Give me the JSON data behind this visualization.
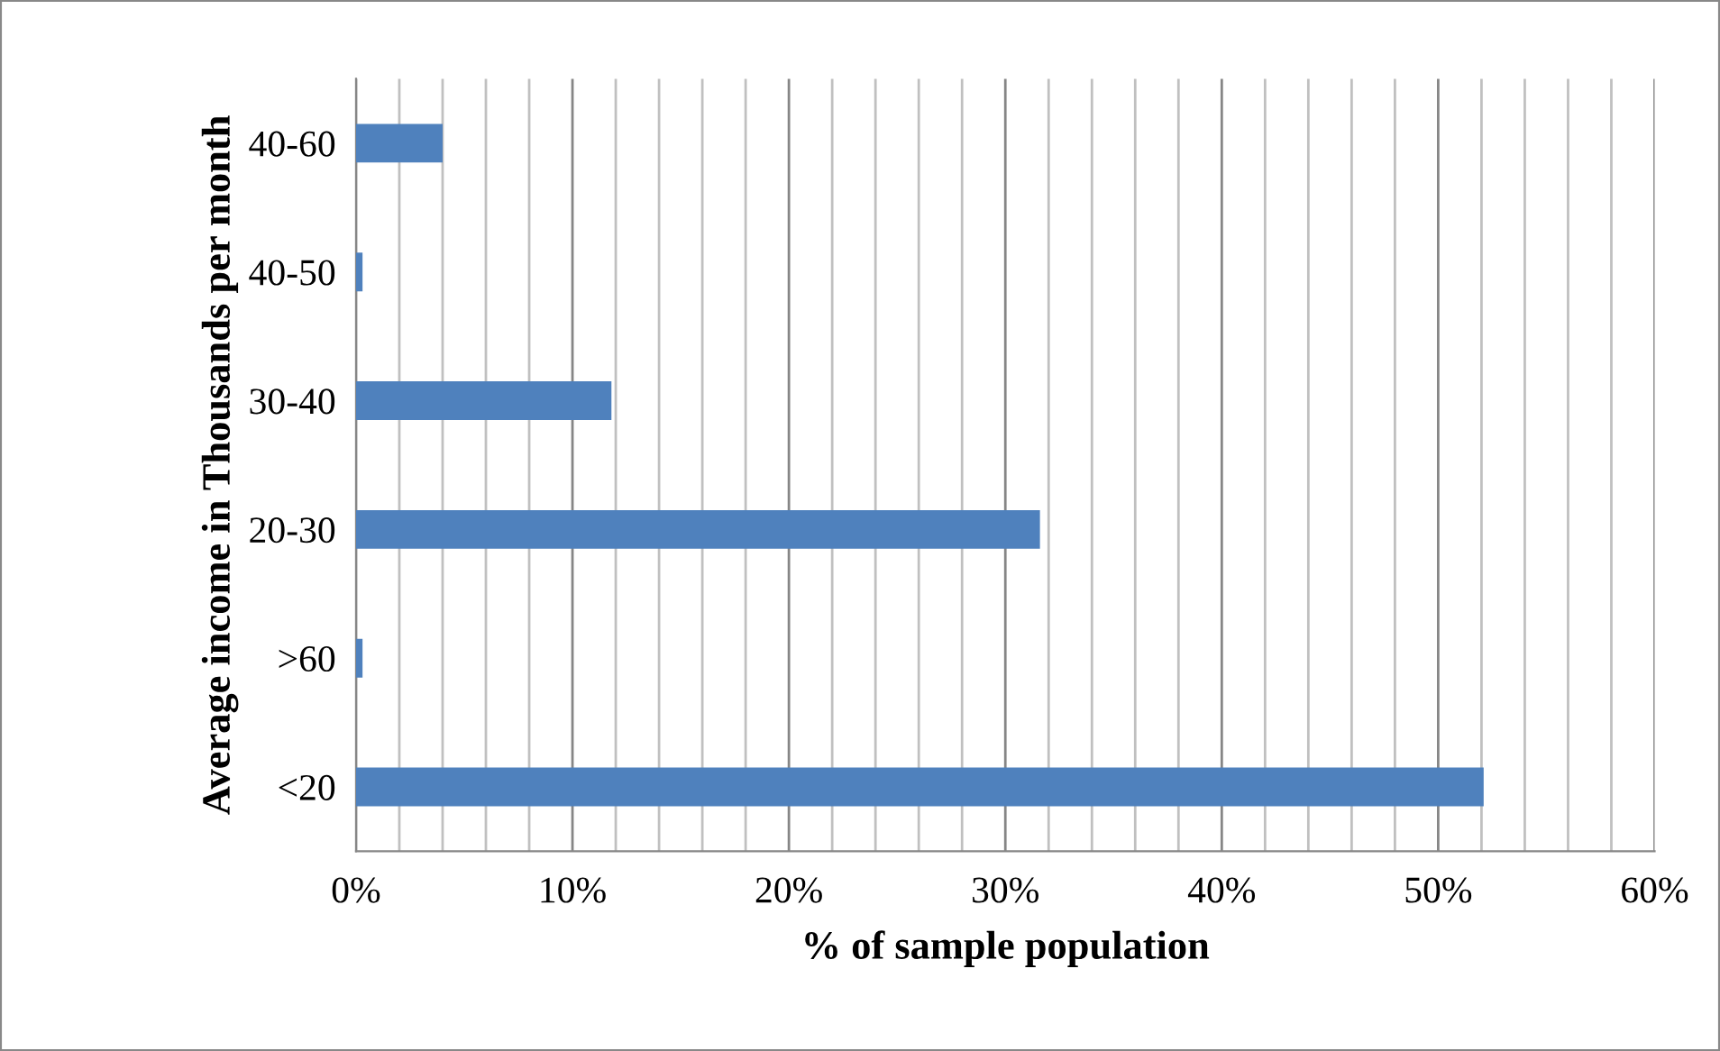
{
  "chart_data": {
    "type": "bar",
    "orientation": "horizontal",
    "categories": [
      "40-60",
      "40-50",
      "30-40",
      "20-30",
      ">60",
      "<20"
    ],
    "values": [
      4.0,
      0.3,
      11.8,
      31.6,
      0.3,
      52.1
    ],
    "color": "#4f81bd",
    "xlabel": "% of sample population",
    "ylabel": "Average income in Thousands per month",
    "xlim": [
      0,
      60
    ],
    "xticks": [
      {
        "value": 0,
        "label": "0%"
      },
      {
        "value": 2,
        "label": null
      },
      {
        "value": 4,
        "label": null
      },
      {
        "value": 6,
        "label": null
      },
      {
        "value": 8,
        "label": null
      },
      {
        "value": 10,
        "label": "10%"
      },
      {
        "value": 12,
        "label": null
      },
      {
        "value": 14,
        "label": null
      },
      {
        "value": 16,
        "label": null
      },
      {
        "value": 18,
        "label": null
      },
      {
        "value": 20,
        "label": "20%"
      },
      {
        "value": 22,
        "label": null
      },
      {
        "value": 24,
        "label": null
      },
      {
        "value": 26,
        "label": null
      },
      {
        "value": 28,
        "label": null
      },
      {
        "value": 30,
        "label": "30%"
      },
      {
        "value": 32,
        "label": null
      },
      {
        "value": 34,
        "label": null
      },
      {
        "value": 36,
        "label": null
      },
      {
        "value": 38,
        "label": null
      },
      {
        "value": 40,
        "label": "40%"
      },
      {
        "value": 42,
        "label": null
      },
      {
        "value": 44,
        "label": null
      },
      {
        "value": 46,
        "label": null
      },
      {
        "value": 48,
        "label": null
      },
      {
        "value": 50,
        "label": "50%"
      },
      {
        "value": 52,
        "label": null
      },
      {
        "value": 54,
        "label": null
      },
      {
        "value": 56,
        "label": null
      },
      {
        "value": 58,
        "label": null
      },
      {
        "value": 60,
        "label": "60%"
      }
    ],
    "grid": "x"
  }
}
